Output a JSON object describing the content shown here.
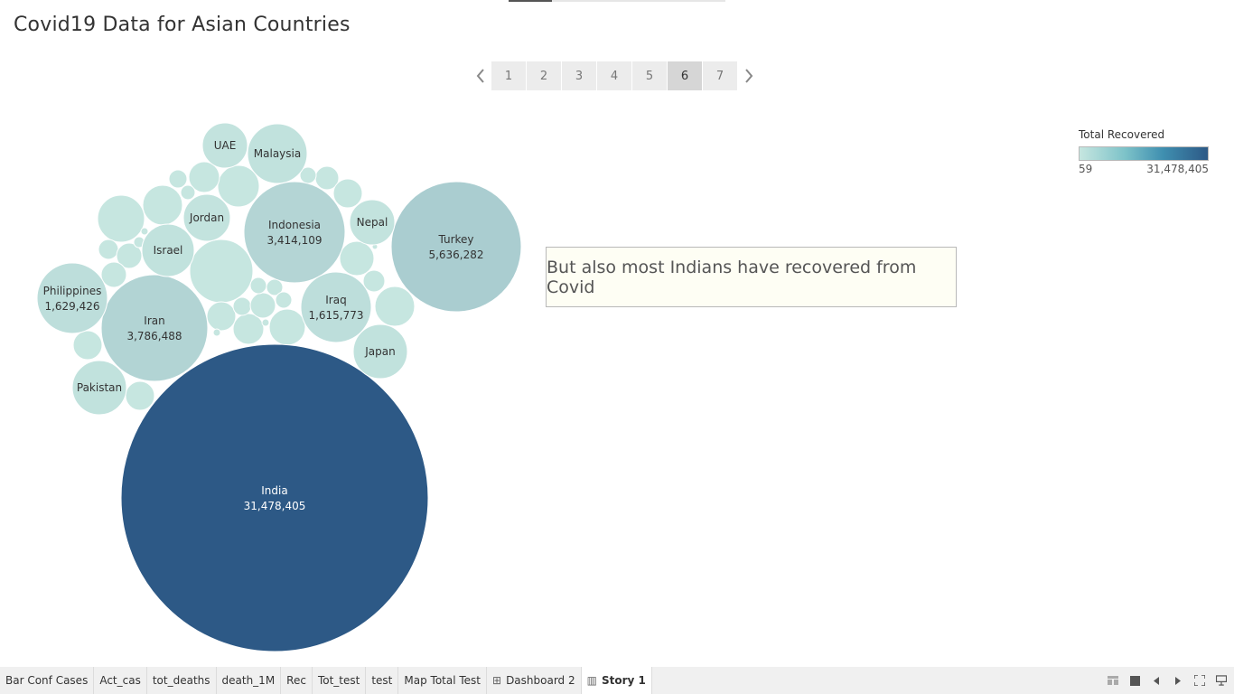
{
  "story": {
    "title": "Covid19 Data for Asian Countries",
    "pages": [
      "1",
      "2",
      "3",
      "4",
      "5",
      "6",
      "7"
    ],
    "active_page": "6",
    "prev_icon": "chevron-left-icon",
    "next_icon": "chevron-right-icon",
    "caption": "But also most Indians have recovered from Covid"
  },
  "legend": {
    "title": "Total Recovered",
    "min_label": "59",
    "max_label": "31,478,405"
  },
  "colors": {
    "low": "#c6e6e0",
    "high": "#2d5986"
  },
  "chart_data": {
    "type": "bubble",
    "measure": "Total Recovered",
    "series": [
      {
        "name": "India",
        "value": 31478405,
        "value_label": "31,478,405"
      },
      {
        "name": "Turkey",
        "value": 5636282,
        "value_label": "5,636,282"
      },
      {
        "name": "Iran",
        "value": 3786488,
        "value_label": "3,786,488"
      },
      {
        "name": "Indonesia",
        "value": 3414109,
        "value_label": "3,414,109"
      },
      {
        "name": "Philippines",
        "value": 1629426,
        "value_label": "1,629,426"
      },
      {
        "name": "Iraq",
        "value": 1615773,
        "value_label": "1,615,773"
      },
      {
        "name": "Japan",
        "value": null,
        "value_label": ""
      },
      {
        "name": "Malaysia",
        "value": null,
        "value_label": ""
      },
      {
        "name": "Pakistan",
        "value": null,
        "value_label": ""
      },
      {
        "name": "Israel",
        "value": null,
        "value_label": ""
      },
      {
        "name": "Jordan",
        "value": null,
        "value_label": ""
      },
      {
        "name": "Nepal",
        "value": null,
        "value_label": ""
      },
      {
        "name": "UAE",
        "value": null,
        "value_label": ""
      }
    ]
  },
  "tabs": [
    {
      "label": "Bar Conf Cases",
      "icon": ""
    },
    {
      "label": "Act_cas",
      "icon": ""
    },
    {
      "label": "tot_deaths",
      "icon": ""
    },
    {
      "label": "death_1M",
      "icon": ""
    },
    {
      "label": "Rec",
      "icon": ""
    },
    {
      "label": "Tot_test",
      "icon": ""
    },
    {
      "label": "test",
      "icon": ""
    },
    {
      "label": "Map  Total Test",
      "icon": ""
    },
    {
      "label": "Dashboard 2",
      "icon": "dashboard-icon"
    },
    {
      "label": "Story 1",
      "icon": "story-icon"
    }
  ],
  "active_tab": "Story 1",
  "controls": [
    "sheet-sorter-icon",
    "filmstrip-icon",
    "prev-sheet-icon",
    "next-sheet-icon",
    "fullscreen-icon",
    "presentation-icon"
  ]
}
